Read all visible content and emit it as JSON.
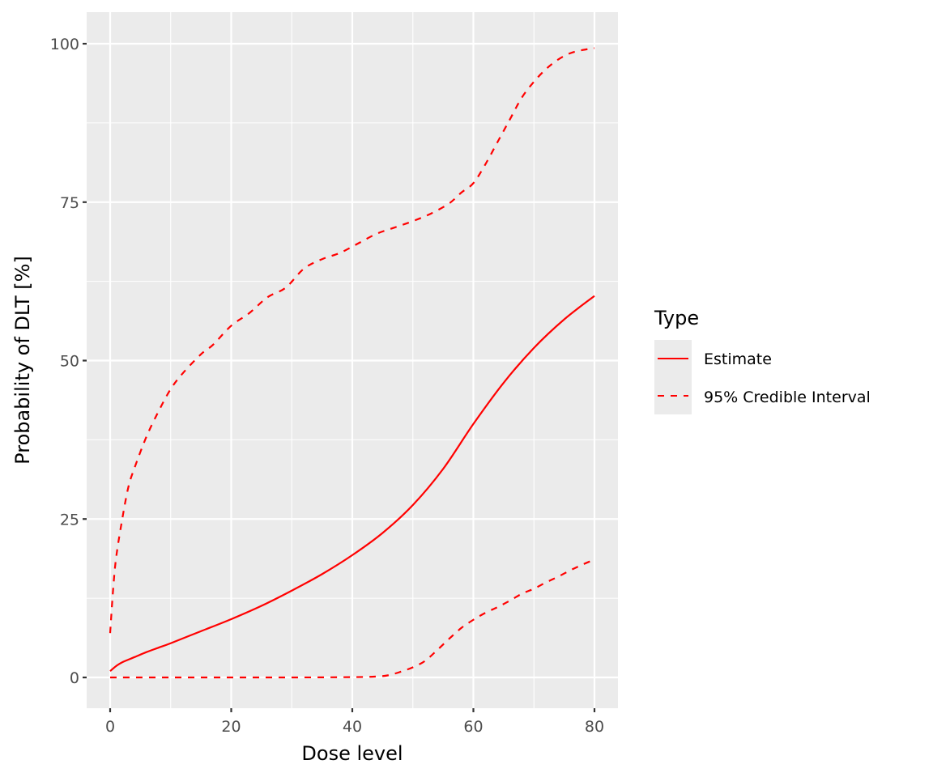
{
  "chart_data": {
    "type": "line",
    "title": "",
    "xlabel": "Dose level",
    "ylabel": "Probability of DLT [%]",
    "xlim": [
      -4,
      84
    ],
    "ylim": [
      -5,
      105
    ],
    "x_ticks": [
      0,
      20,
      40,
      60,
      80
    ],
    "y_ticks": [
      0,
      25,
      50,
      75,
      100
    ],
    "x_tick_labels": [
      "0",
      "20",
      "40",
      "60",
      "80"
    ],
    "y_tick_labels": [
      "0",
      "25",
      "50",
      "75",
      "100"
    ],
    "grid": true,
    "legend_position": "right",
    "legend_title": "Type",
    "series": [
      {
        "name": "Estimate",
        "linetype": "solid",
        "color": "#ff0000",
        "x": [
          0,
          1,
          2,
          4,
          6,
          8,
          10,
          15,
          20,
          25,
          30,
          35,
          40,
          45,
          50,
          55,
          60,
          65,
          70,
          75,
          80
        ],
        "values": [
          1,
          1.8,
          2.4,
          3.2,
          4.0,
          4.7,
          5.4,
          7.3,
          9.2,
          11.3,
          13.7,
          16.3,
          19.3,
          22.8,
          27.2,
          32.9,
          40.0,
          46.5,
          52.0,
          56.5,
          60.2
        ]
      },
      {
        "name": "95% Credible Interval (upper)",
        "linetype": "dashed",
        "color": "#ff0000",
        "x": [
          0,
          0.5,
          1,
          2,
          3,
          4,
          6,
          8,
          10,
          12,
          15,
          17,
          20,
          23,
          26,
          29,
          32,
          35,
          38,
          41,
          44,
          47,
          50,
          53,
          56,
          58,
          60,
          62,
          64,
          66,
          68,
          70,
          72,
          74,
          76,
          78,
          80
        ],
        "values": [
          7,
          14,
          19,
          25,
          30,
          33,
          38,
          42,
          45.5,
          48,
          51,
          52.5,
          55.5,
          57.5,
          60,
          61.5,
          64.5,
          66,
          67,
          68.5,
          70,
          71,
          72,
          73.2,
          74.8,
          76.5,
          78,
          81,
          84.5,
          88,
          91.5,
          94,
          96,
          97.5,
          98.5,
          99,
          99.3
        ]
      },
      {
        "name": "95% Credible Interval (lower)",
        "linetype": "dashed",
        "color": "#ff0000",
        "x": [
          0,
          10,
          20,
          30,
          40,
          44,
          46,
          48,
          50,
          52,
          54,
          56,
          58,
          60,
          62,
          64,
          66,
          68,
          70,
          72,
          74,
          76,
          78,
          80
        ],
        "values": [
          0,
          0,
          0,
          0,
          0.05,
          0.15,
          0.35,
          0.9,
          1.6,
          2.6,
          4.3,
          6.1,
          7.8,
          9.1,
          10.2,
          11.1,
          12.1,
          13.2,
          14.0,
          15.0,
          15.9,
          16.9,
          17.8,
          18.6
        ]
      }
    ]
  },
  "legend": {
    "title": "Type",
    "items": [
      {
        "label": "Estimate",
        "linetype": "solid"
      },
      {
        "label": "95% Credible Interval",
        "linetype": "dashed"
      }
    ]
  },
  "style": {
    "panel_bg": "#ebebeb",
    "grid_color": "#ffffff",
    "line_color": "#ff0000"
  }
}
